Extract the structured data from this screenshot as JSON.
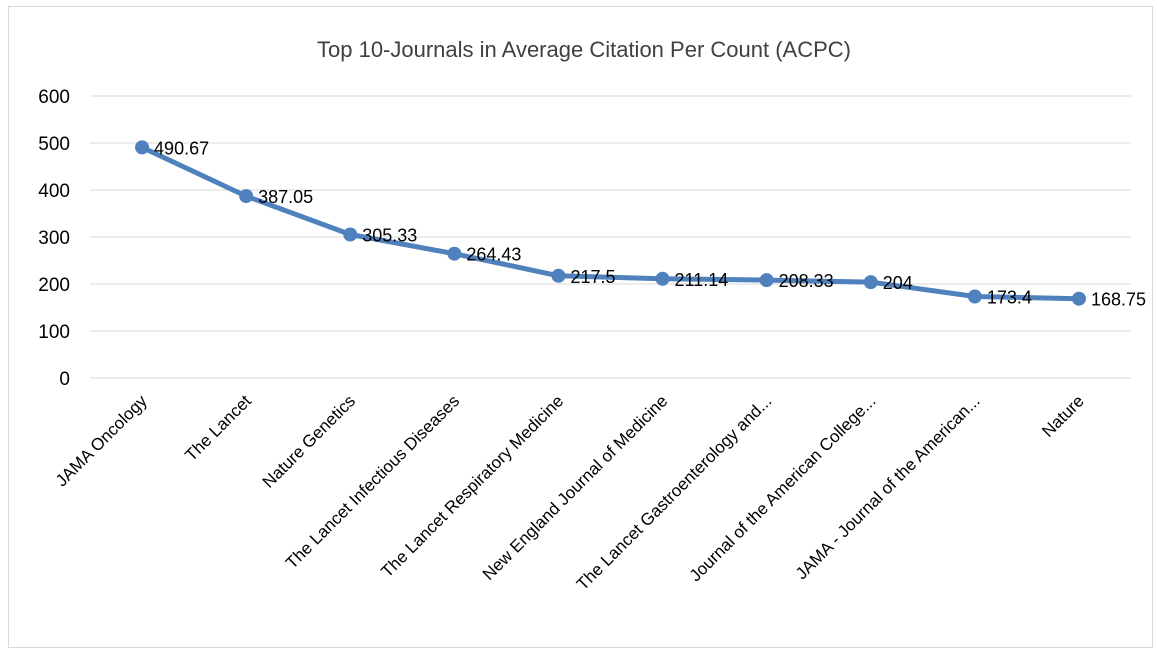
{
  "chart_data": {
    "type": "line",
    "title": "Top 10-Journals in Average Citation Per Count (ACPC)",
    "xlabel": "",
    "ylabel": "",
    "ylim": [
      0,
      600
    ],
    "yticks": [
      0,
      100,
      200,
      300,
      400,
      500,
      600
    ],
    "categories": [
      "JAMA Oncology",
      "The Lancet",
      "Nature Genetics",
      "The Lancet Infectious Diseases",
      "The Lancet Respiratory Medicine",
      "New England Journal of Medicine",
      "The Lancet Gastroenterology and...",
      "Journal of the American College...",
      "JAMA - Journal of the American...",
      "Nature"
    ],
    "series": [
      {
        "values": [
          490.67,
          387.05,
          305.33,
          264.43,
          217.5,
          211.14,
          208.33,
          204,
          173.4,
          168.75
        ],
        "color": "#4f81bd"
      }
    ],
    "grid": true,
    "legend": "none",
    "data_labels": true
  }
}
